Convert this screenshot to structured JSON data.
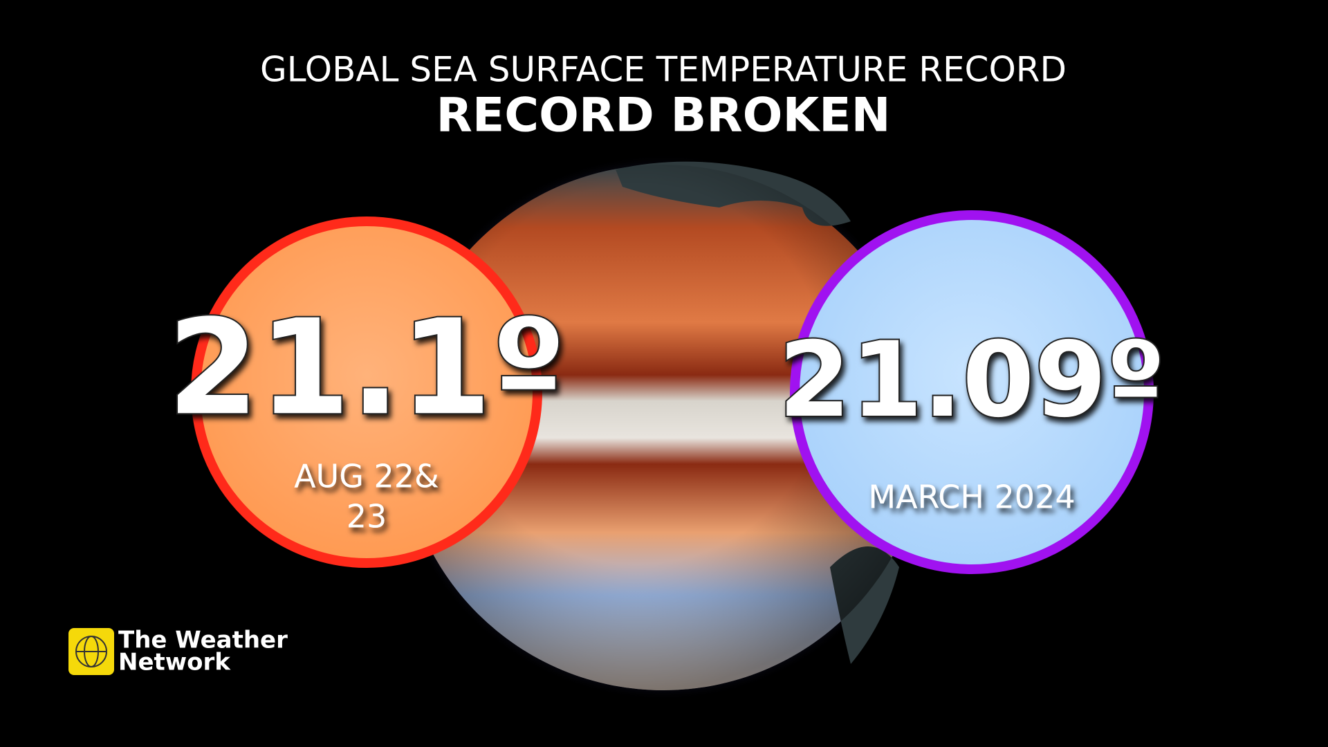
{
  "header": {
    "title": "GLOBAL SEA SURFACE TEMPERATURE RECORD",
    "subtitle": "RECORD BROKEN"
  },
  "records": [
    {
      "value": "21.1º",
      "date_lines": [
        "AUG 22&",
        "23"
      ]
    },
    {
      "value": "21.09º",
      "date": "MARCH 2024"
    }
  ],
  "logo": {
    "lines": [
      "The Weather",
      "Network"
    ]
  }
}
